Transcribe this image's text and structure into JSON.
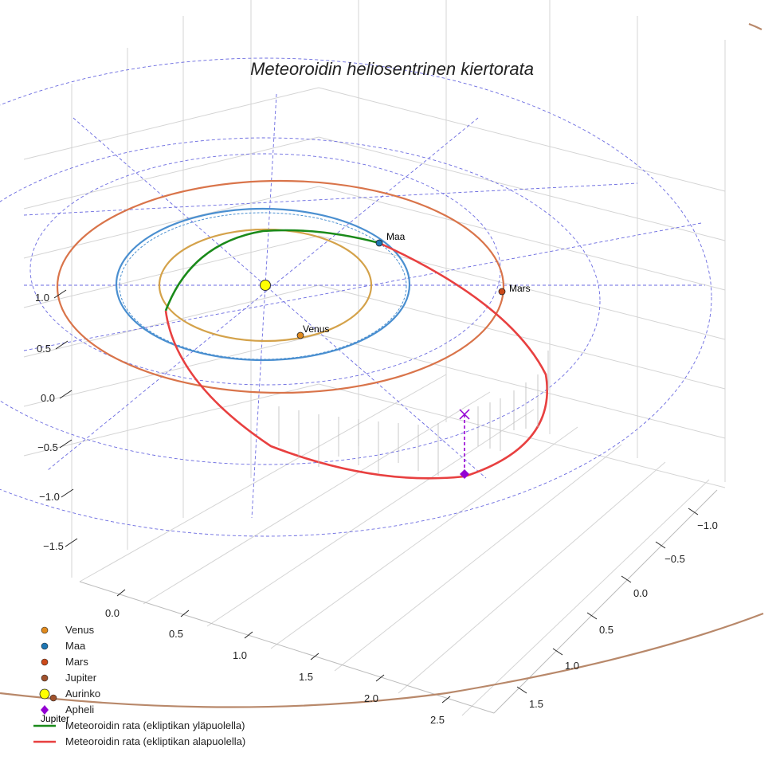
{
  "chart_data": {
    "type": "line",
    "title": "Meteoroidin heliosentrinen kiertorata",
    "axes": {
      "x_ticks": [
        "0.0",
        "0.5",
        "1.0",
        "1.5",
        "2.0",
        "2.5"
      ],
      "y_ticks": [
        "−1.0",
        "−0.5",
        "0.0",
        "0.5",
        "1.0",
        "1.5"
      ],
      "z_ticks": [
        "1.0",
        "0.5",
        "0.0",
        "−0.5",
        "−1.0",
        "−1.5"
      ],
      "grid": true
    },
    "planets": [
      {
        "name": "Venus",
        "label": "Venus",
        "orbit_radius_au": 0.72,
        "orbit_color": "#d4a24a",
        "marker_color": "#e08a1e"
      },
      {
        "name": "Maa",
        "label": "Maa",
        "orbit_radius_au": 1.0,
        "orbit_color": "#4a8fd0",
        "marker_color": "#1f77b4"
      },
      {
        "name": "Mars",
        "label": "Mars",
        "orbit_radius_au": 1.52,
        "orbit_color": "#d9744a",
        "marker_color": "#cc4a1a"
      },
      {
        "name": "Jupiter",
        "label": "Jupiter",
        "orbit_radius_au": 5.2,
        "orbit_color": "#b8886a",
        "marker_color": "#a0522d"
      }
    ],
    "sun": {
      "name": "Aurinko",
      "color": "#ffff00"
    },
    "meteoroid_orbit": {
      "above_ecliptic": {
        "name": "Meteoroidin rata (ekliptikan yläpuolella)",
        "color": "#1a8a1a"
      },
      "below_ecliptic": {
        "name": "Meteoroidin rata (ekliptikan alapuolella)",
        "color": "#e84040"
      }
    },
    "aphelion": {
      "name": "Apheli",
      "color": "#9400d3"
    },
    "legend": {
      "position": "bottom-left",
      "entries": [
        {
          "label": "Venus",
          "kind": "dot",
          "color": "#e08a1e"
        },
        {
          "label": "Maa",
          "kind": "dot",
          "color": "#1f77b4"
        },
        {
          "label": "Mars",
          "kind": "dot",
          "color": "#cc4a1a"
        },
        {
          "label": "Jupiter",
          "kind": "dot",
          "color": "#a0522d"
        },
        {
          "label": "Aurinko",
          "kind": "sun",
          "color": "#ffff00"
        },
        {
          "label": "Apheli",
          "kind": "diamond",
          "color": "#9400d3"
        },
        {
          "label": "Meteoroidin rata (ekliptikan yläpuolella)",
          "kind": "line",
          "color": "#1a8a1a"
        },
        {
          "label": "Meteoroidin rata (ekliptikan alapuolella)",
          "kind": "line",
          "color": "#e84040"
        }
      ]
    },
    "overlay_label": "Jupiter"
  }
}
